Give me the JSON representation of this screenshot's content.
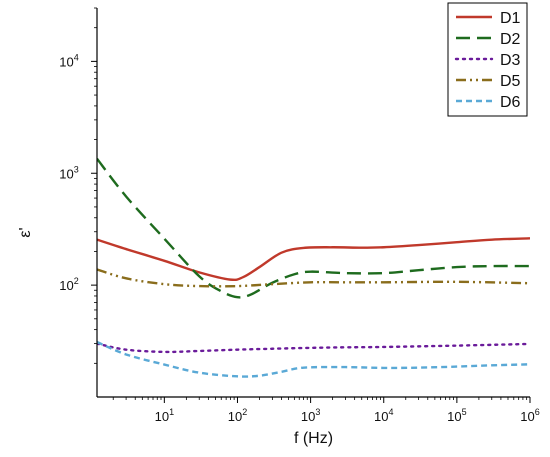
{
  "chart_data": {
    "type": "line",
    "title": "",
    "xlabel": "f (Hz)",
    "ylabel": "ε'",
    "x_scale": "log",
    "y_scale": "log",
    "xlim": [
      1.2,
      1000000
    ],
    "ylim": [
      10,
      30000
    ],
    "grid": false,
    "legend_position": "top-right",
    "x_ticks": [
      {
        "value": 10,
        "base": "10",
        "exp": "1"
      },
      {
        "value": 100,
        "base": "10",
        "exp": "2"
      },
      {
        "value": 1000,
        "base": "10",
        "exp": "3"
      },
      {
        "value": 10000,
        "base": "10",
        "exp": "4"
      },
      {
        "value": 100000,
        "base": "10",
        "exp": "5"
      },
      {
        "value": 1000000,
        "base": "10",
        "exp": "6"
      }
    ],
    "y_ticks": [
      {
        "value": 100,
        "base": "10",
        "exp": "2"
      },
      {
        "value": 1000,
        "base": "10",
        "exp": "3"
      },
      {
        "value": 10000,
        "base": "10",
        "exp": "4"
      }
    ],
    "series": [
      {
        "name": "D1",
        "color": "#c0392b",
        "dash": "solid",
        "x": [
          1.2,
          3,
          10,
          30,
          80,
          120,
          200,
          400,
          800,
          2000,
          5000,
          10000,
          30000,
          100000,
          300000,
          1000000
        ],
        "y": [
          255,
          210,
          165,
          130,
          112,
          118,
          145,
          195,
          215,
          218,
          216,
          218,
          228,
          242,
          255,
          262
        ]
      },
      {
        "name": "D2",
        "color": "#1e6b1e",
        "dash": "dash",
        "x": [
          1.2,
          3,
          10,
          30,
          60,
          100,
          150,
          300,
          600,
          1000,
          3000,
          10000,
          30000,
          100000,
          300000,
          1000000
        ],
        "y": [
          1350,
          620,
          260,
          120,
          88,
          78,
          82,
          105,
          125,
          132,
          128,
          128,
          136,
          145,
          148,
          148
        ]
      },
      {
        "name": "D3",
        "color": "#6a1b9a",
        "dash": "dot",
        "x": [
          1.2,
          3,
          10,
          30,
          100,
          300,
          1000,
          3000,
          10000,
          100000,
          1000000
        ],
        "y": [
          30,
          26.5,
          25.3,
          25.8,
          26.5,
          27,
          27.5,
          27.8,
          28,
          28.8,
          29.8
        ]
      },
      {
        "name": "D5",
        "color": "#8a6d1c",
        "dash": "dashdotdot",
        "x": [
          1.2,
          3,
          10,
          30,
          100,
          300,
          1000,
          3000,
          10000,
          100000,
          1000000
        ],
        "y": [
          138,
          115,
          102,
          98,
          98,
          102,
          106,
          106,
          106,
          107,
          104
        ]
      },
      {
        "name": "D6",
        "color": "#5aa9d6",
        "dash": "shortdash",
        "x": [
          1.2,
          3,
          10,
          30,
          100,
          200,
          400,
          800,
          3000,
          10000,
          30000,
          100000,
          300000,
          1000000
        ],
        "y": [
          31,
          24,
          19.5,
          16.5,
          15.3,
          15.5,
          16.8,
          18.3,
          18.5,
          18.2,
          18.3,
          18.7,
          19.2,
          19.6
        ]
      }
    ]
  }
}
